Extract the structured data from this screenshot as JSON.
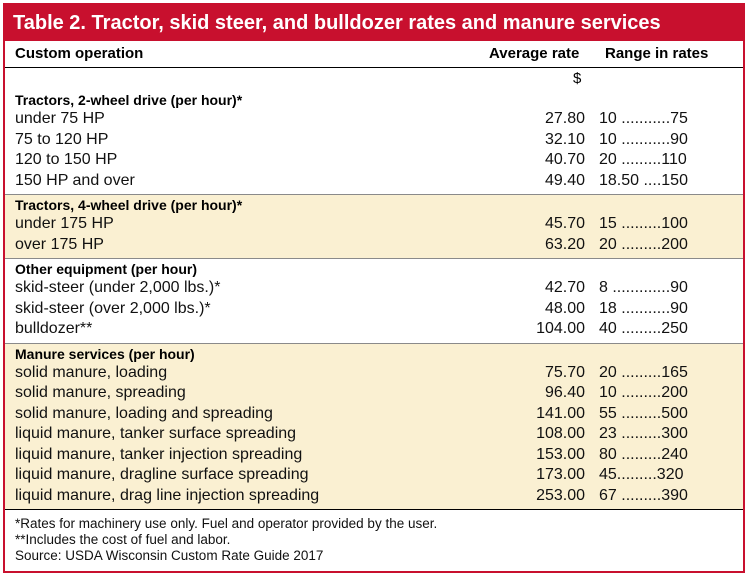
{
  "title": "Table 2. Tractor, skid steer, and bulldozer rates and manure services",
  "columns": {
    "operation": "Custom operation",
    "average": "Average rate",
    "range": "Range in rates"
  },
  "unit": "$",
  "groups": [
    {
      "title": "Tractors, 2-wheel drive (per hour)*",
      "rows": [
        {
          "label": "under 75 HP",
          "avg": "27.80",
          "range": "10 ...........75"
        },
        {
          "label": "75 to 120 HP",
          "avg": "32.10",
          "range": "10 ...........90"
        },
        {
          "label": "120 to 150 HP",
          "avg": "40.70",
          "range": "20 .........110"
        },
        {
          "label": "150 HP and over",
          "avg": "49.40",
          "range": "18.50 ....150"
        }
      ]
    },
    {
      "title": "Tractors, 4-wheel drive (per hour)*",
      "rows": [
        {
          "label": "under 175 HP",
          "avg": "45.70",
          "range": "15 .........100"
        },
        {
          "label": "over 175 HP",
          "avg": "63.20",
          "range": "20 .........200"
        }
      ]
    },
    {
      "title": "Other equipment (per hour)",
      "rows": [
        {
          "label": "skid-steer (under 2,000 lbs.)*",
          "avg": "42.70",
          "range": "8 .............90"
        },
        {
          "label": "skid-steer (over 2,000 lbs.)*",
          "avg": "48.00",
          "range": "18 ...........90"
        },
        {
          "label": "bulldozer**",
          "avg": "104.00",
          "range": "40 .........250"
        }
      ]
    },
    {
      "title": "Manure services (per hour)",
      "rows": [
        {
          "label": "solid manure, loading",
          "avg": "75.70",
          "range": "20 .........165"
        },
        {
          "label": "solid manure, spreading",
          "avg": "96.40",
          "range": "10 .........200"
        },
        {
          "label": "solid manure, loading and spreading",
          "avg": "141.00",
          "range": "55 .........500"
        },
        {
          "label": "liquid manure, tanker surface spreading",
          "avg": "108.00",
          "range": "23 .........300"
        },
        {
          "label": "liquid manure, tanker injection spreading",
          "avg": "153.00",
          "range": "80 .........240"
        },
        {
          "label": "liquid manure, dragline surface spreading",
          "avg": "173.00",
          "range": "45.........320"
        },
        {
          "label": "liquid manure, drag line injection spreading",
          "avg": "253.00",
          "range": "67 .........390"
        }
      ]
    }
  ],
  "footnotes": [
    "*Rates for machinery use only. Fuel and operator provided by the user.",
    "**Includes the cost of fuel and labor.",
    "Source: USDA Wisconsin Custom Rate Guide 2017"
  ],
  "colors": {
    "accent": "#c8102e",
    "shade": "#faf0d2"
  }
}
